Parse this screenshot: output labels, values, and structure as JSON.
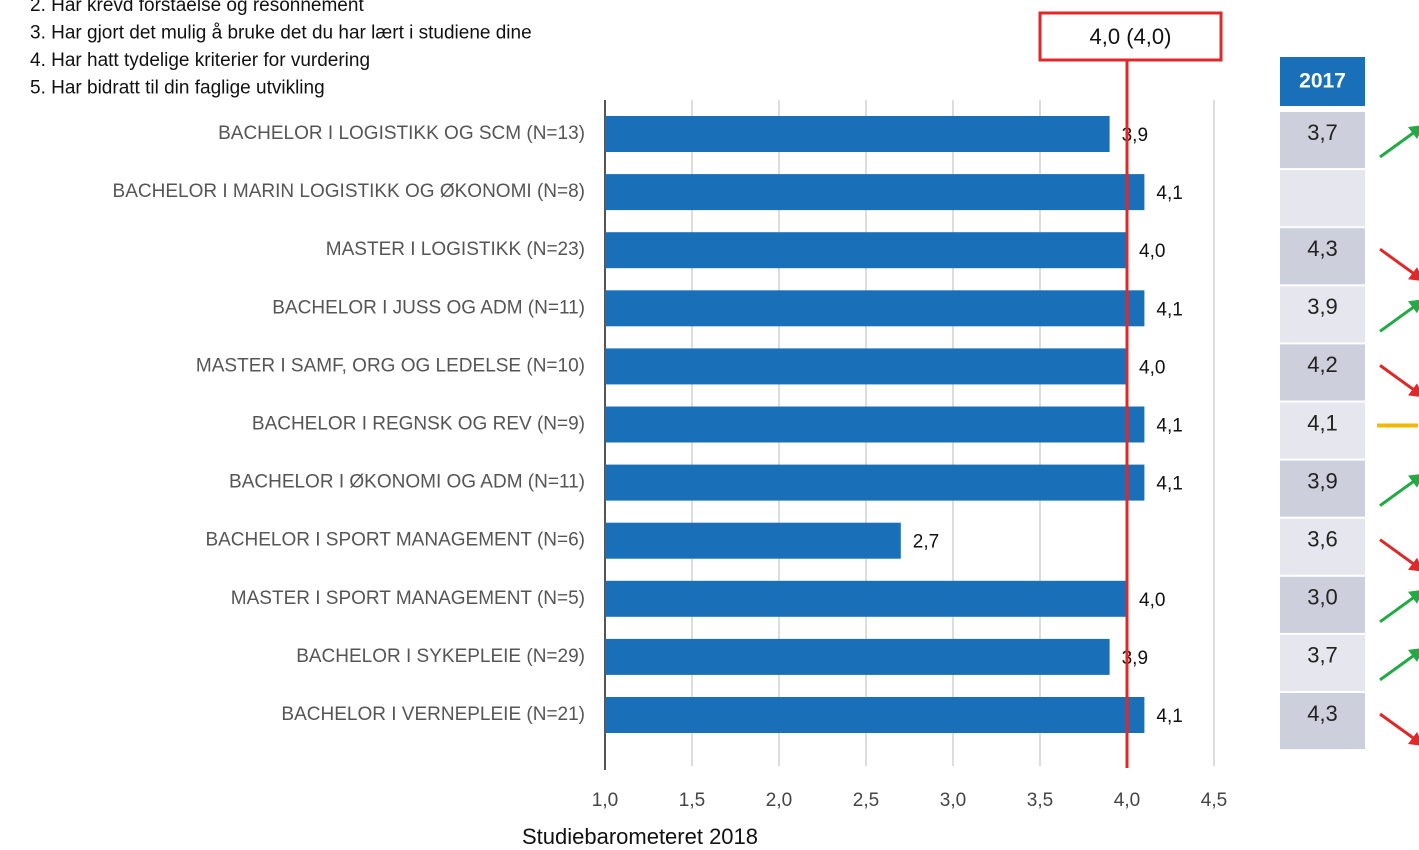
{
  "chart_data": {
    "type": "bar",
    "orientation": "horizontal",
    "legend_lines": [
      "2. Har krevd forståelse og resonnement",
      "3. Har gjort det mulig å bruke det du har lært i studiene dine",
      "4. Har hatt tydelige kriterier for vurdering",
      "5. Har bidratt til din faglige utvikling"
    ],
    "categories": [
      "BACHELOR I LOGISTIKK OG SCM (N=13)",
      "BACHELOR I MARIN LOGISTIKK OG ØKONOMI (N=8)",
      "MASTER I LOGISTIKK (N=23)",
      "BACHELOR I JUSS OG ADM (N=11)",
      "MASTER I SAMF, ORG OG LEDELSE (N=10)",
      "BACHELOR I REGNSK OG REV (N=9)",
      "BACHELOR I ØKONOMI OG ADM (N=11)",
      "BACHELOR I SPORT MANAGEMENT (N=6)",
      "MASTER I SPORT MANAGEMENT (N=5)",
      "BACHELOR I SYKEPLEIE (N=29)",
      "BACHELOR I VERNEPLEIE (N=21)"
    ],
    "values": [
      3.9,
      4.1,
      4.0,
      4.1,
      4.0,
      4.1,
      4.1,
      2.7,
      4.0,
      3.9,
      4.1
    ],
    "value_labels": [
      "3,9",
      "4,1",
      "4,0",
      "4,1",
      "4,0",
      "4,1",
      "4,1",
      "2,7",
      "4,0",
      "3,9",
      "4,1"
    ],
    "color": "#1a70b8",
    "xlim": [
      1.0,
      4.5
    ],
    "xticks": [
      {
        "value": 1.0,
        "label": "1,0"
      },
      {
        "value": 1.5,
        "label": "1,5"
      },
      {
        "value": 2.0,
        "label": "2,0"
      },
      {
        "value": 2.5,
        "label": "2,5"
      },
      {
        "value": 3.0,
        "label": "3,0"
      },
      {
        "value": 3.5,
        "label": "3,5"
      },
      {
        "value": 4.0,
        "label": "4,0"
      },
      {
        "value": 4.5,
        "label": "4,5"
      }
    ],
    "grid": true,
    "xlabel": "Studiebarometeret 2018",
    "reference_line": {
      "value": 4.0,
      "label": "4,0 (4,0)",
      "color": "#e02828"
    },
    "comparison": {
      "header": "2017",
      "values": [
        3.7,
        null,
        4.3,
        3.9,
        4.2,
        4.1,
        3.9,
        3.6,
        3.0,
        3.7,
        4.3
      ],
      "value_labels": [
        "3,7",
        null,
        "4,3",
        "3,9",
        "4,2",
        "4,1",
        "3,9",
        "3,6",
        "3,0",
        "3,7",
        "4,3"
      ],
      "header_color": "#1a70b8",
      "up_color": "#22aa44",
      "down_color": "#e02828",
      "flat_color": "#f5b800"
    }
  }
}
